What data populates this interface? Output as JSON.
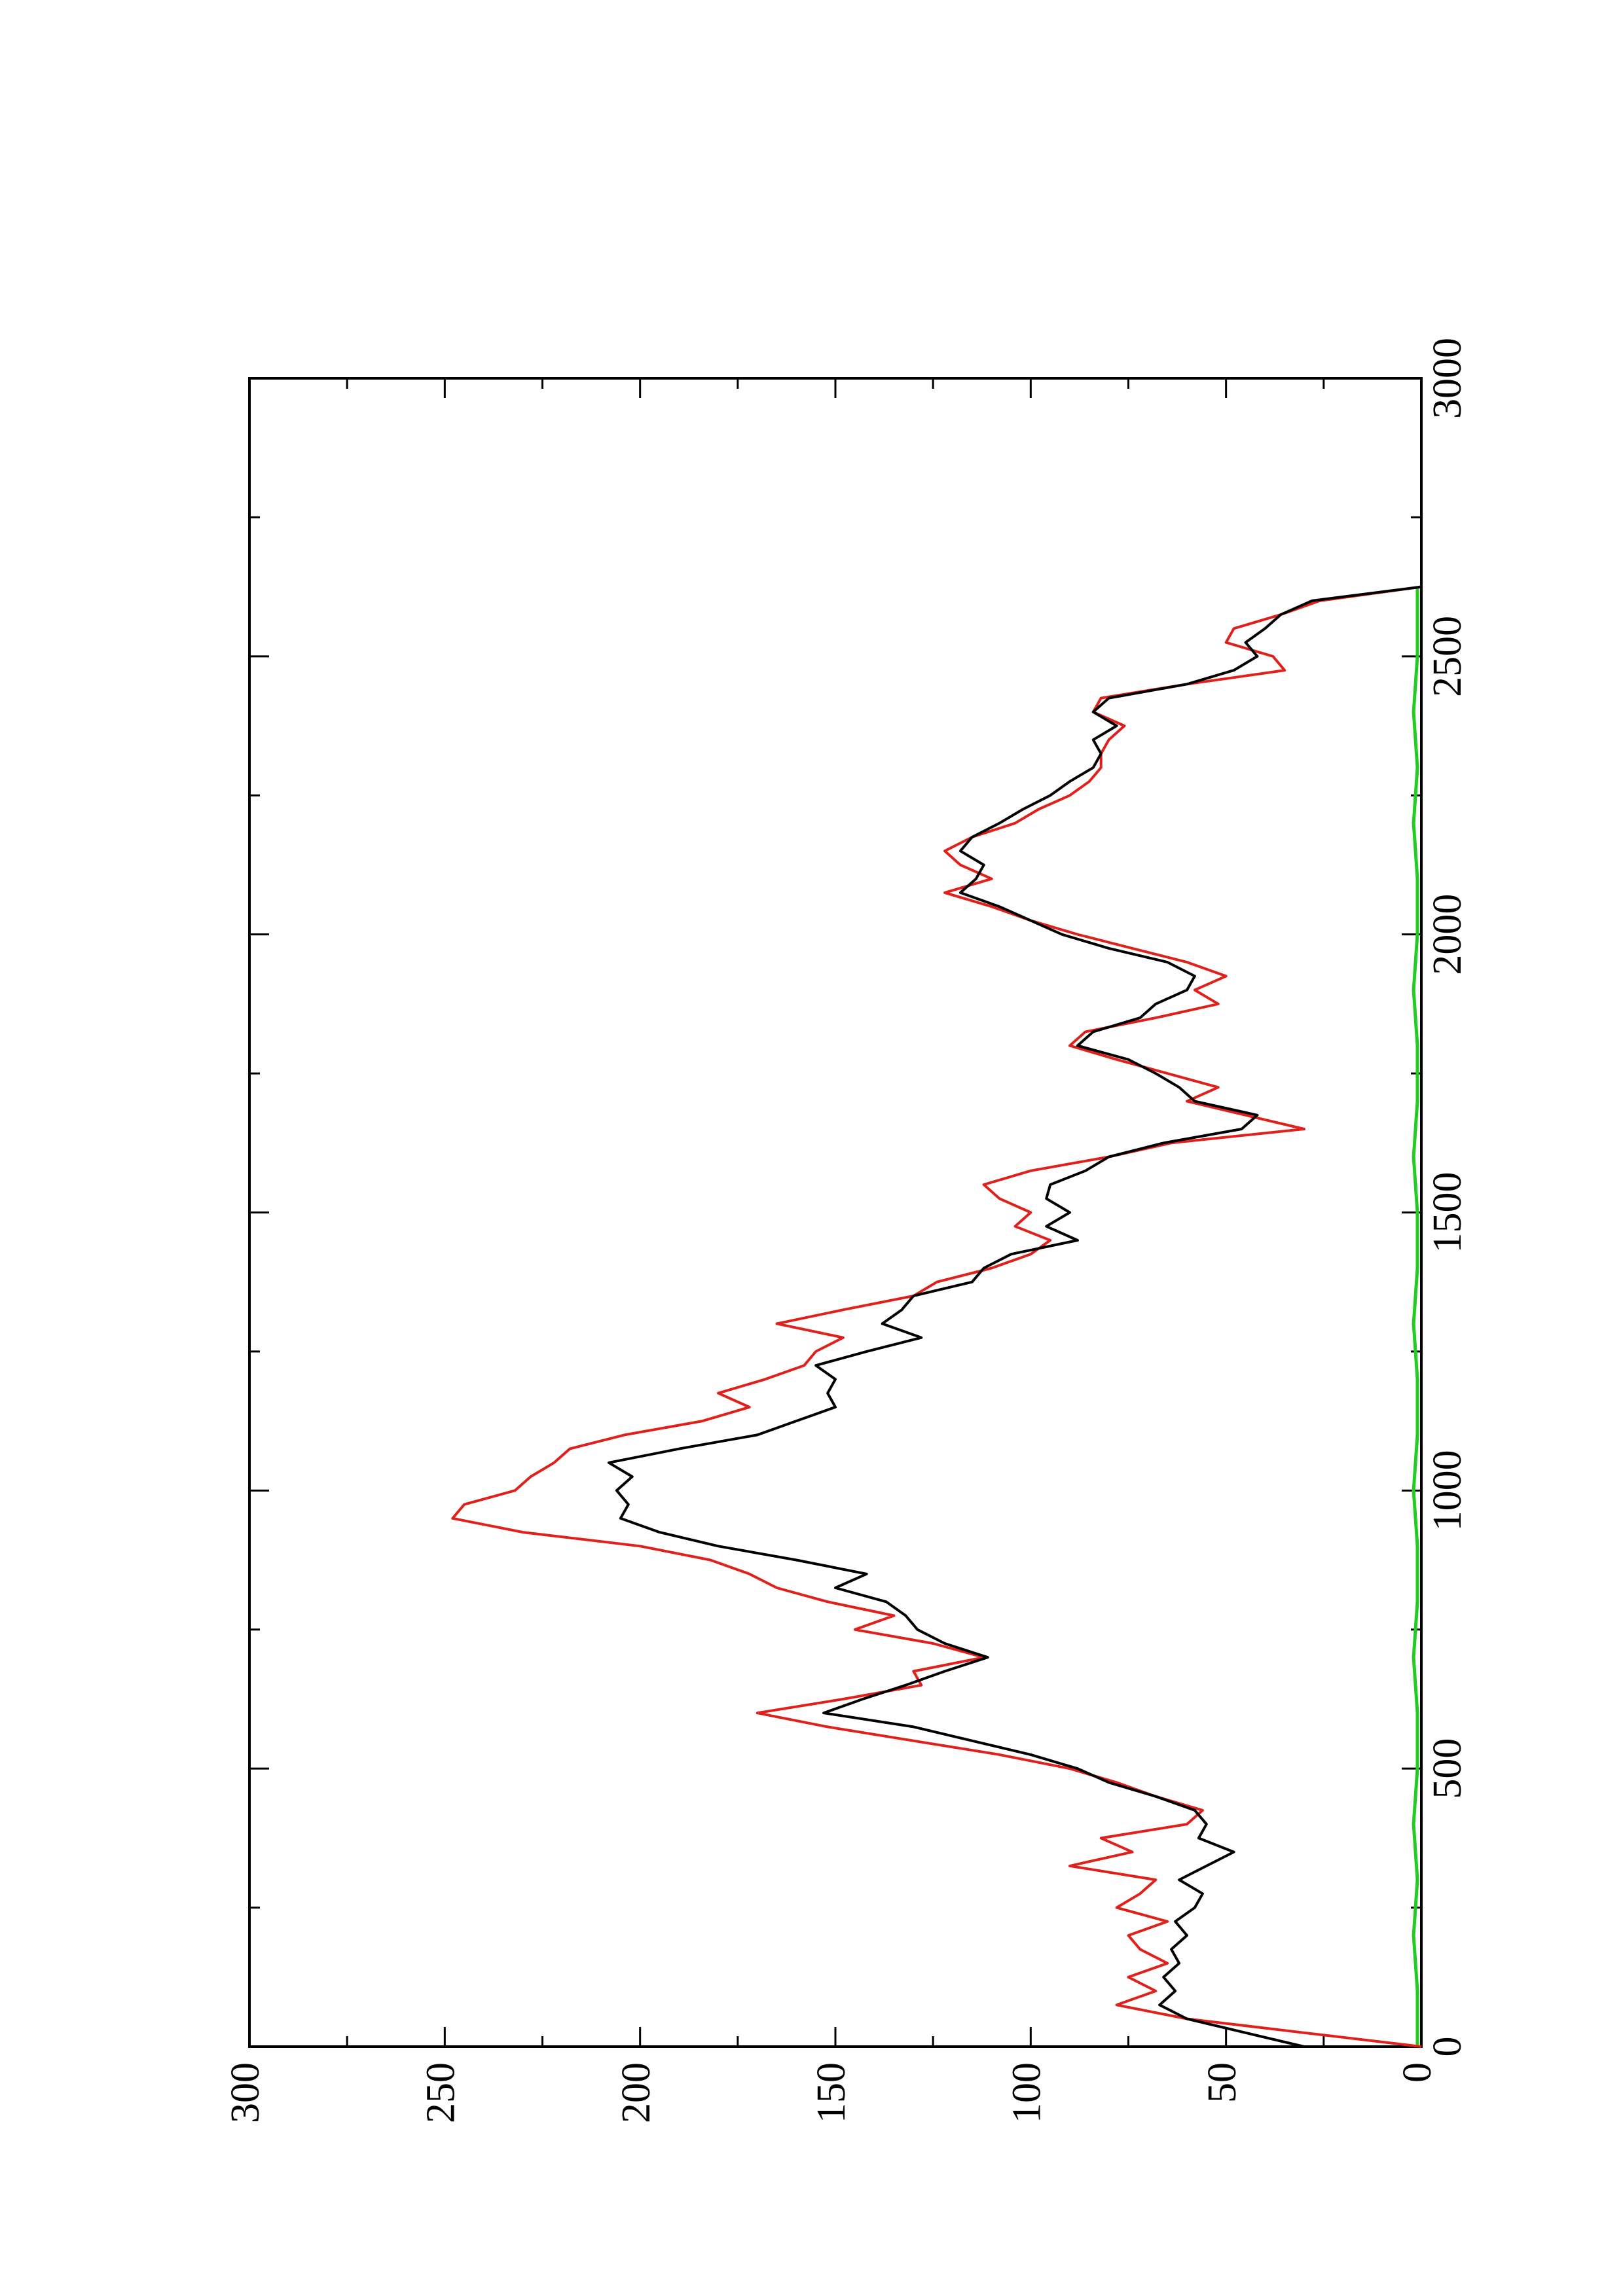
{
  "chart_data": {
    "type": "line",
    "title": "",
    "xlabel": "",
    "ylabel": "",
    "orientation": "rotated 90 degrees counter-clockwise (page landscape)",
    "xlim": [
      0,
      3000
    ],
    "ylim": [
      0,
      300
    ],
    "x_ticks": [
      0,
      500,
      1000,
      1500,
      2000,
      2500,
      3000
    ],
    "x_tick_labels": [
      "0",
      "500",
      "1000",
      "1500",
      "2000",
      "2500",
      "3000"
    ],
    "y_ticks": [
      0,
      50,
      100,
      150,
      200,
      250,
      300
    ],
    "y_tick_labels": [
      "0",
      "50",
      "100",
      "150",
      "200",
      "250",
      "300"
    ],
    "grid": false,
    "legend": "none",
    "series": [
      {
        "color": "#000000",
        "x": [
          0,
          25,
          50,
          75,
          100,
          125,
          150,
          175,
          200,
          225,
          250,
          275,
          300,
          325,
          350,
          375,
          400,
          425,
          450,
          475,
          500,
          525,
          550,
          575,
          600,
          625,
          650,
          675,
          700,
          725,
          750,
          775,
          800,
          825,
          850,
          875,
          900,
          925,
          950,
          975,
          1000,
          1025,
          1050,
          1075,
          1100,
          1125,
          1150,
          1175,
          1200,
          1225,
          1250,
          1275,
          1300,
          1325,
          1350,
          1375,
          1400,
          1425,
          1450,
          1475,
          1500,
          1525,
          1550,
          1575,
          1600,
          1625,
          1650,
          1675,
          1700,
          1725,
          1750,
          1775,
          1800,
          1825,
          1850,
          1875,
          1900,
          1925,
          1950,
          1975,
          2000,
          2025,
          2050,
          2075,
          2100,
          2125,
          2150,
          2175,
          2200,
          2225,
          2250,
          2275,
          2300,
          2325,
          2350,
          2375,
          2400,
          2425,
          2450,
          2475,
          2500,
          2525,
          2550,
          2575,
          2600,
          2625
        ],
        "y": [
          30,
          45,
          60,
          67,
          63,
          66,
          62,
          64,
          60,
          63,
          58,
          56,
          62,
          55,
          48,
          57,
          55,
          58,
          68,
          80,
          88,
          100,
          115,
          130,
          153,
          143,
          132,
          122,
          111,
          122,
          129,
          132,
          137,
          150,
          142,
          160,
          180,
          195,
          205,
          203,
          206,
          202,
          208,
          190,
          170,
          160,
          150,
          152,
          150,
          155,
          142,
          128,
          138,
          133,
          130,
          115,
          112,
          105,
          88,
          96,
          90,
          96,
          95,
          86,
          80,
          66,
          46,
          42,
          58,
          62,
          68,
          75,
          88,
          84,
          72,
          68,
          60,
          58,
          65,
          80,
          92,
          100,
          108,
          118,
          114,
          112,
          118,
          115,
          108,
          102,
          95,
          90,
          84,
          82,
          84,
          78,
          84,
          80,
          60,
          48,
          42,
          45,
          40,
          36,
          28,
          0
        ]
      },
      {
        "color": "#e0201a",
        "x": [
          0,
          25,
          50,
          75,
          100,
          125,
          150,
          175,
          200,
          225,
          250,
          275,
          300,
          325,
          350,
          375,
          400,
          425,
          450,
          475,
          500,
          525,
          550,
          575,
          600,
          625,
          650,
          675,
          700,
          725,
          750,
          775,
          800,
          825,
          850,
          875,
          900,
          925,
          950,
          975,
          1000,
          1025,
          1050,
          1075,
          1100,
          1125,
          1150,
          1175,
          1200,
          1225,
          1250,
          1275,
          1300,
          1325,
          1350,
          1375,
          1400,
          1425,
          1450,
          1475,
          1500,
          1525,
          1550,
          1575,
          1600,
          1625,
          1650,
          1675,
          1700,
          1725,
          1750,
          1775,
          1800,
          1825,
          1850,
          1875,
          1900,
          1925,
          1950,
          1975,
          2000,
          2025,
          2050,
          2075,
          2100,
          2125,
          2150,
          2175,
          2200,
          2225,
          2250,
          2275,
          2300,
          2325,
          2350,
          2375,
          2400,
          2425,
          2450,
          2475,
          2500,
          2525,
          2550,
          2575,
          2600,
          2625
        ],
        "y": [
          0,
          30,
          60,
          78,
          68,
          75,
          65,
          72,
          75,
          65,
          78,
          72,
          68,
          90,
          74,
          82,
          60,
          56,
          68,
          78,
          90,
          108,
          130,
          152,
          170,
          148,
          128,
          130,
          112,
          125,
          145,
          135,
          152,
          165,
          172,
          182,
          200,
          230,
          248,
          245,
          232,
          228,
          222,
          218,
          204,
          184,
          172,
          180,
          168,
          158,
          155,
          148,
          165,
          148,
          130,
          124,
          110,
          100,
          95,
          104,
          100,
          108,
          112,
          100,
          80,
          64,
          30,
          45,
          60,
          52,
          65,
          78,
          90,
          86,
          68,
          52,
          58,
          50,
          60,
          74,
          88,
          100,
          110,
          122,
          110,
          118,
          122,
          115,
          104,
          98,
          90,
          85,
          82,
          82,
          80,
          76,
          84,
          82,
          60,
          35,
          38,
          50,
          48,
          36,
          26,
          0
        ]
      },
      {
        "color": "#22cc22",
        "x": [
          0,
          100,
          200,
          300,
          400,
          500,
          600,
          700,
          800,
          900,
          1000,
          1100,
          1200,
          1300,
          1400,
          1500,
          1600,
          1700,
          1800,
          1900,
          2000,
          2100,
          2200,
          2300,
          2400,
          2500,
          2600,
          2625
        ],
        "y": [
          1,
          1,
          2,
          1,
          2,
          1,
          1,
          2,
          1,
          1,
          2,
          1,
          1,
          2,
          1,
          1,
          2,
          1,
          1,
          2,
          1,
          1,
          2,
          1,
          2,
          1,
          1,
          1
        ]
      }
    ]
  }
}
